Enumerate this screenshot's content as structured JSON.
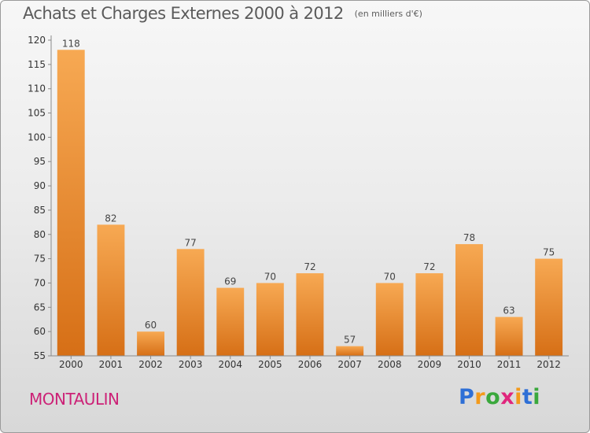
{
  "title": "Achats et Charges Externes 2000 à 2012",
  "unit": "(en milliers d'€)",
  "commune": "MONTAULIN",
  "logo": {
    "letters": [
      "P",
      "r",
      "o",
      "x",
      "i",
      "t",
      "i"
    ],
    "colors": [
      "#2e6fd6",
      "#f39a1b",
      "#3aa83c",
      "#e0267d",
      "#f39a1b",
      "#2e6fd6",
      "#3aa83c"
    ]
  },
  "colors": {
    "bar_light": "#f7a953",
    "bar_dark": "#d66f16",
    "title": "#5b5b5b",
    "commune": "#cc2277"
  },
  "chart_data": {
    "type": "bar",
    "categories": [
      "2000",
      "2001",
      "2002",
      "2003",
      "2004",
      "2005",
      "2006",
      "2007",
      "2008",
      "2009",
      "2010",
      "2011",
      "2012"
    ],
    "values": [
      118,
      82,
      60,
      77,
      69,
      70,
      72,
      57,
      70,
      72,
      78,
      63,
      75
    ],
    "ylim": [
      55,
      120
    ],
    "yticks": [
      55,
      60,
      65,
      70,
      75,
      80,
      85,
      90,
      95,
      100,
      105,
      110,
      115,
      120
    ],
    "grid": false
  }
}
